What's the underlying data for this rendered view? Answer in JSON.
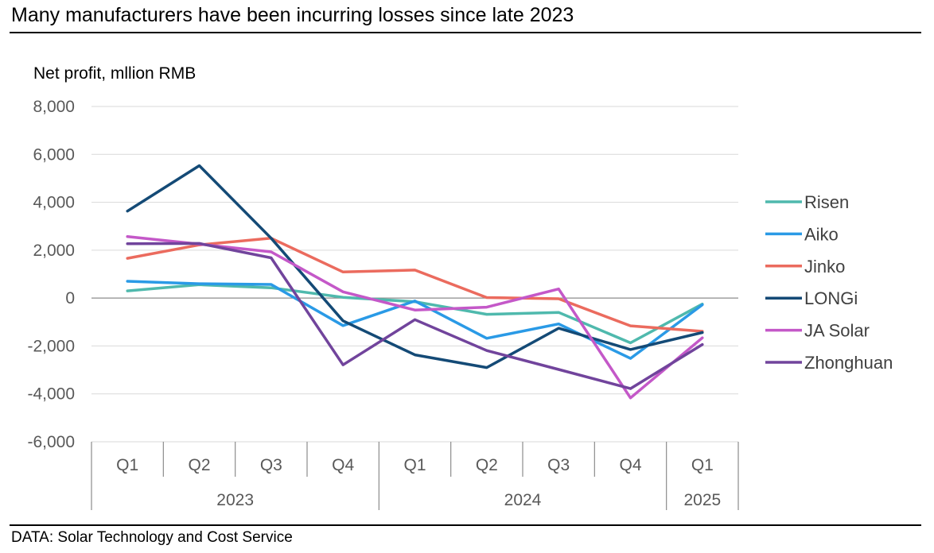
{
  "title": "Many manufacturers have been incurring losses since late 2023",
  "source": "DATA: Solar Technology and Cost Service",
  "chart_data": {
    "type": "line",
    "title": "Many manufacturers have been incurring losses since late 2023",
    "ylabel": "Net profit, mllion  RMB",
    "xlabel": "",
    "ylim": [
      -6000,
      8000
    ],
    "yticks": [
      8000,
      6000,
      4000,
      2000,
      0,
      -2000,
      -4000,
      -6000
    ],
    "ytick_labels": [
      "8,000",
      "6,000",
      "4,000",
      "2,000",
      "0",
      "-2,000",
      "-4,000",
      "-6,000"
    ],
    "categories": [
      "Q1",
      "Q2",
      "Q3",
      "Q4",
      "Q1",
      "Q2",
      "Q3",
      "Q4",
      "Q1"
    ],
    "year_groups": [
      {
        "label": "2023",
        "start": 0,
        "end": 3
      },
      {
        "label": "2024",
        "start": 4,
        "end": 7
      },
      {
        "label": "2025",
        "start": 8,
        "end": 8
      }
    ],
    "grid": true,
    "legend_position": "right",
    "series": [
      {
        "name": "Risen",
        "color": "#4fb9ad",
        "values": [
          300,
          560,
          430,
          30,
          -150,
          -680,
          -600,
          -1870,
          -250
        ]
      },
      {
        "name": "Aiko",
        "color": "#2a9ae6",
        "values": [
          700,
          600,
          570,
          -1150,
          -120,
          -1680,
          -1080,
          -2520,
          -280
        ]
      },
      {
        "name": "Jinko",
        "color": "#eb6b5e",
        "values": [
          1660,
          2220,
          2500,
          1090,
          1170,
          20,
          -30,
          -1160,
          -1390
        ]
      },
      {
        "name": "LONGi",
        "color": "#144a76",
        "values": [
          3630,
          5530,
          2500,
          -950,
          -2370,
          -2900,
          -1260,
          -2150,
          -1440
        ]
      },
      {
        "name": "JA Solar",
        "color": "#c458c8",
        "values": [
          2570,
          2250,
          1930,
          260,
          -500,
          -380,
          380,
          -4170,
          -1660
        ]
      },
      {
        "name": "Zhonghuan",
        "color": "#71449c",
        "values": [
          2270,
          2280,
          1680,
          -2790,
          -900,
          -2190,
          -2980,
          -3780,
          -1940
        ]
      }
    ]
  }
}
